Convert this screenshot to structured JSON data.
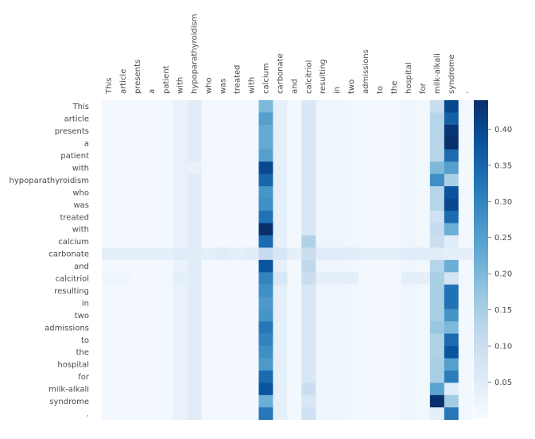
{
  "chart_data": {
    "type": "heatmap",
    "tokens": [
      "This",
      "article",
      "presents",
      "a",
      "patient",
      "with",
      "hypoparathyroidism",
      "who",
      "was",
      "treated",
      "with",
      "calcium",
      "carbonate",
      "and",
      "calcitriol",
      "resulting",
      "in",
      "two",
      "admissions",
      "to",
      "the",
      "hospital",
      "for",
      "milk-alkali",
      "syndrome",
      "."
    ],
    "colorbar": {
      "min": 0.0,
      "max": 0.44,
      "ticks": [
        0.05,
        0.1,
        0.15,
        0.2,
        0.25,
        0.3,
        0.35,
        0.4
      ],
      "tick_labels": [
        "0.05",
        "0.10",
        "0.15",
        "0.20",
        "0.25",
        "0.30",
        "0.35",
        "0.40"
      ]
    },
    "column_base": [
      0.01,
      0.01,
      0.01,
      0.01,
      0.01,
      0.03,
      0.05,
      0.01,
      0.01,
      0.01,
      0.01,
      0.23,
      0.04,
      0.01,
      0.07,
      0.02,
      0.02,
      0.015,
      0.01,
      0.01,
      0.01,
      0.02,
      0.015,
      0.13,
      0.29,
      0.01
    ],
    "overrides": [
      {
        "row": 0,
        "col": 11,
        "value": 0.2
      },
      {
        "row": 0,
        "col": 24,
        "value": 0.4
      },
      {
        "row": 0,
        "col": 23,
        "value": 0.1
      },
      {
        "row": 1,
        "col": 11,
        "value": 0.25
      },
      {
        "row": 1,
        "col": 24,
        "value": 0.36
      },
      {
        "row": 2,
        "col": 11,
        "value": 0.23
      },
      {
        "row": 2,
        "col": 24,
        "value": 0.43
      },
      {
        "row": 3,
        "col": 11,
        "value": 0.23
      },
      {
        "row": 3,
        "col": 24,
        "value": 0.44
      },
      {
        "row": 4,
        "col": 11,
        "value": 0.25
      },
      {
        "row": 4,
        "col": 24,
        "value": 0.34
      },
      {
        "row": 4,
        "col": 23,
        "value": 0.13
      },
      {
        "row": 5,
        "col": 11,
        "value": 0.4
      },
      {
        "row": 5,
        "col": 24,
        "value": 0.25
      },
      {
        "row": 5,
        "col": 23,
        "value": 0.2
      },
      {
        "row": 5,
        "col": 6,
        "value": 0.03
      },
      {
        "row": 6,
        "col": 11,
        "value": 0.35
      },
      {
        "row": 6,
        "col": 24,
        "value": 0.15
      },
      {
        "row": 6,
        "col": 23,
        "value": 0.28
      },
      {
        "row": 7,
        "col": 11,
        "value": 0.27
      },
      {
        "row": 7,
        "col": 24,
        "value": 0.38
      },
      {
        "row": 8,
        "col": 11,
        "value": 0.28
      },
      {
        "row": 8,
        "col": 24,
        "value": 0.4
      },
      {
        "row": 9,
        "col": 11,
        "value": 0.33
      },
      {
        "row": 9,
        "col": 24,
        "value": 0.34
      },
      {
        "row": 9,
        "col": 23,
        "value": 0.09
      },
      {
        "row": 10,
        "col": 11,
        "value": 0.44
      },
      {
        "row": 10,
        "col": 24,
        "value": 0.22
      },
      {
        "row": 10,
        "col": 23,
        "value": 0.11
      },
      {
        "row": 11,
        "col": 11,
        "value": 0.34
      },
      {
        "row": 11,
        "col": 24,
        "value": 0.05
      },
      {
        "row": 11,
        "col": 14,
        "value": 0.14
      },
      {
        "row": 11,
        "col": 23,
        "value": 0.1
      },
      {
        "row": 12,
        "col": 11,
        "value": 0.11
      },
      {
        "row": 12,
        "col": 24,
        "value": 0.04
      },
      {
        "row": 12,
        "col": 14,
        "value": 0.1
      },
      {
        "row": 12,
        "col": 23,
        "value": 0.05
      },
      {
        "row": 12,
        "col": 0,
        "value": 0.04
      },
      {
        "row": 12,
        "col": 1,
        "value": 0.04
      },
      {
        "row": 12,
        "col": 2,
        "value": 0.04
      },
      {
        "row": 12,
        "col": 3,
        "value": 0.04
      },
      {
        "row": 12,
        "col": 4,
        "value": 0.04
      },
      {
        "row": 12,
        "col": 5,
        "value": 0.05
      },
      {
        "row": 12,
        "col": 7,
        "value": 0.04
      },
      {
        "row": 12,
        "col": 8,
        "value": 0.05
      },
      {
        "row": 12,
        "col": 9,
        "value": 0.04
      },
      {
        "row": 12,
        "col": 10,
        "value": 0.05
      },
      {
        "row": 12,
        "col": 12,
        "value": 0.07
      },
      {
        "row": 12,
        "col": 13,
        "value": 0.04
      },
      {
        "row": 12,
        "col": 15,
        "value": 0.05
      },
      {
        "row": 12,
        "col": 16,
        "value": 0.05
      },
      {
        "row": 12,
        "col": 17,
        "value": 0.05
      },
      {
        "row": 12,
        "col": 18,
        "value": 0.04
      },
      {
        "row": 12,
        "col": 19,
        "value": 0.04
      },
      {
        "row": 12,
        "col": 20,
        "value": 0.04
      },
      {
        "row": 12,
        "col": 21,
        "value": 0.05
      },
      {
        "row": 12,
        "col": 22,
        "value": 0.05
      },
      {
        "row": 12,
        "col": 25,
        "value": 0.04
      },
      {
        "row": 13,
        "col": 11,
        "value": 0.38
      },
      {
        "row": 13,
        "col": 24,
        "value": 0.22
      },
      {
        "row": 13,
        "col": 14,
        "value": 0.12
      },
      {
        "row": 14,
        "col": 11,
        "value": 0.3
      },
      {
        "row": 14,
        "col": 24,
        "value": 0.08
      },
      {
        "row": 14,
        "col": 14,
        "value": 0.1
      },
      {
        "row": 14,
        "col": 23,
        "value": 0.15
      },
      {
        "row": 14,
        "col": 12,
        "value": 0.07
      },
      {
        "row": 14,
        "col": 0,
        "value": 0.02
      },
      {
        "row": 14,
        "col": 1,
        "value": 0.02
      },
      {
        "row": 14,
        "col": 5,
        "value": 0.04
      },
      {
        "row": 14,
        "col": 15,
        "value": 0.04
      },
      {
        "row": 14,
        "col": 16,
        "value": 0.04
      },
      {
        "row": 14,
        "col": 17,
        "value": 0.04
      },
      {
        "row": 14,
        "col": 21,
        "value": 0.04
      },
      {
        "row": 14,
        "col": 22,
        "value": 0.04
      },
      {
        "row": 15,
        "col": 11,
        "value": 0.28
      },
      {
        "row": 15,
        "col": 24,
        "value": 0.33
      },
      {
        "row": 15,
        "col": 23,
        "value": 0.15
      },
      {
        "row": 16,
        "col": 11,
        "value": 0.26
      },
      {
        "row": 16,
        "col": 24,
        "value": 0.33
      },
      {
        "row": 16,
        "col": 23,
        "value": 0.15
      },
      {
        "row": 17,
        "col": 11,
        "value": 0.27
      },
      {
        "row": 17,
        "col": 24,
        "value": 0.27
      },
      {
        "row": 17,
        "col": 23,
        "value": 0.15
      },
      {
        "row": 18,
        "col": 11,
        "value": 0.32
      },
      {
        "row": 18,
        "col": 24,
        "value": 0.2
      },
      {
        "row": 18,
        "col": 23,
        "value": 0.17
      },
      {
        "row": 19,
        "col": 11,
        "value": 0.3
      },
      {
        "row": 19,
        "col": 24,
        "value": 0.34
      },
      {
        "row": 19,
        "col": 23,
        "value": 0.14
      },
      {
        "row": 20,
        "col": 11,
        "value": 0.28
      },
      {
        "row": 20,
        "col": 24,
        "value": 0.38
      },
      {
        "row": 20,
        "col": 23,
        "value": 0.14
      },
      {
        "row": 21,
        "col": 11,
        "value": 0.26
      },
      {
        "row": 21,
        "col": 24,
        "value": 0.25
      },
      {
        "row": 21,
        "col": 23,
        "value": 0.15
      },
      {
        "row": 22,
        "col": 11,
        "value": 0.34
      },
      {
        "row": 22,
        "col": 24,
        "value": 0.31
      },
      {
        "row": 22,
        "col": 23,
        "value": 0.15
      },
      {
        "row": 23,
        "col": 11,
        "value": 0.38
      },
      {
        "row": 23,
        "col": 24,
        "value": 0.05
      },
      {
        "row": 23,
        "col": 23,
        "value": 0.24
      },
      {
        "row": 23,
        "col": 14,
        "value": 0.1
      },
      {
        "row": 24,
        "col": 11,
        "value": 0.22
      },
      {
        "row": 24,
        "col": 24,
        "value": 0.16
      },
      {
        "row": 24,
        "col": 23,
        "value": 0.44
      },
      {
        "row": 25,
        "col": 11,
        "value": 0.32
      },
      {
        "row": 25,
        "col": 24,
        "value": 0.32
      },
      {
        "row": 25,
        "col": 23,
        "value": 0.04
      },
      {
        "row": 25,
        "col": 14,
        "value": 0.09
      }
    ]
  }
}
